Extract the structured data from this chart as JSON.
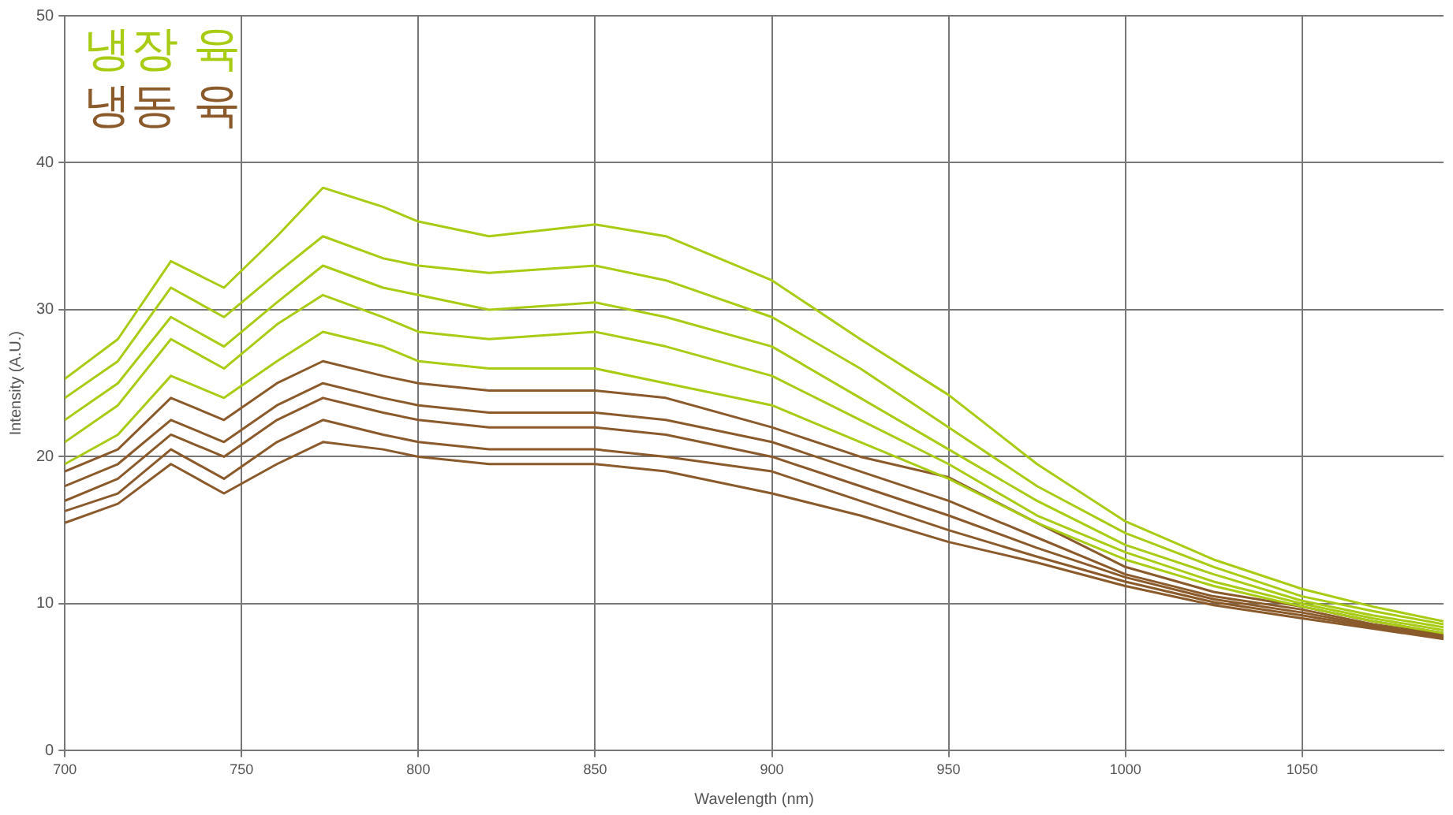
{
  "chart_data": {
    "type": "line",
    "xlabel": "Wavelength (nm)",
    "ylabel": "Intensity (A.U.)",
    "x": [
      700,
      715,
      730,
      745,
      760,
      773,
      790,
      800,
      820,
      850,
      870,
      900,
      925,
      950,
      975,
      1000,
      1025,
      1050,
      1070,
      1090
    ],
    "series": [
      {
        "name": "냉장 육",
        "color": "#a8cc14",
        "values": [
          25.3,
          28,
          33.3,
          31.5,
          35,
          38.3,
          37,
          36,
          35,
          35.8,
          35,
          32,
          28,
          24.2,
          19.5,
          15.6,
          13,
          11,
          9.8,
          8.8
        ]
      },
      {
        "color": "#a8cc14",
        "values": [
          24,
          26.5,
          31.5,
          29.5,
          32.5,
          35,
          33.5,
          33,
          32.5,
          33,
          32,
          29.5,
          26,
          22,
          18,
          14.8,
          12.5,
          10.5,
          9.5,
          8.6
        ]
      },
      {
        "color": "#a8cc14",
        "values": [
          22.5,
          25,
          29.5,
          27.5,
          30.5,
          33,
          31.5,
          31,
          30,
          30.5,
          29.5,
          27.5,
          24,
          20.5,
          17,
          14,
          12,
          10.2,
          9.2,
          8.4
        ]
      },
      {
        "color": "#a8cc14",
        "values": [
          21,
          23.5,
          28,
          26,
          29,
          31,
          29.5,
          28.5,
          28,
          28.5,
          27.5,
          25.5,
          22.5,
          19.5,
          16,
          13.5,
          11.5,
          10,
          9,
          8.2
        ]
      },
      {
        "color": "#a8cc14",
        "values": [
          19.5,
          21.5,
          25.5,
          24,
          26.5,
          28.5,
          27.5,
          26.5,
          26,
          26,
          25,
          23.5,
          21,
          18.5,
          15.5,
          13,
          11.2,
          9.8,
          8.8,
          8
        ]
      },
      {
        "name": "냉동 육",
        "color": "#8b5a2b",
        "values": [
          19,
          20.5,
          24,
          22.5,
          25,
          26.5,
          25.5,
          25,
          24.5,
          24.5,
          24,
          22,
          20,
          18.6,
          15.5,
          12.5,
          10.8,
          9.8,
          8.8,
          8
        ]
      },
      {
        "color": "#8b5a2b",
        "values": [
          18,
          19.5,
          22.5,
          21,
          23.5,
          25,
          24,
          23.5,
          23,
          23,
          22.5,
          21,
          19,
          17,
          14.5,
          12,
          10.5,
          9.6,
          8.6,
          7.9
        ]
      },
      {
        "color": "#8b5a2b",
        "values": [
          17,
          18.5,
          21.5,
          20,
          22.5,
          24,
          23,
          22.5,
          22,
          22,
          21.5,
          20,
          18,
          16,
          13.8,
          11.8,
          10.3,
          9.4,
          8.5,
          7.8
        ]
      },
      {
        "color": "#8b5a2b",
        "values": [
          16.3,
          17.5,
          20.5,
          18.5,
          21,
          22.5,
          21.5,
          21,
          20.5,
          20.5,
          20,
          19,
          17,
          15,
          13.2,
          11.5,
          10.1,
          9.2,
          8.4,
          7.7
        ]
      },
      {
        "color": "#8b5a2b",
        "values": [
          15.5,
          16.8,
          19.5,
          17.5,
          19.5,
          21,
          20.5,
          20,
          19.5,
          19.5,
          19,
          17.5,
          16,
          14.2,
          12.8,
          11.2,
          9.9,
          9,
          8.3,
          7.6
        ]
      }
    ],
    "xlim": [
      700,
      1090
    ],
    "xticks": [
      700,
      750,
      800,
      850,
      900,
      950,
      1000,
      1050
    ],
    "ylim": [
      0,
      50
    ],
    "yticks": [
      0,
      10,
      20,
      30,
      40,
      50
    ],
    "grid": true,
    "legend": "top left",
    "marker": "none",
    "line_style": "solid"
  }
}
